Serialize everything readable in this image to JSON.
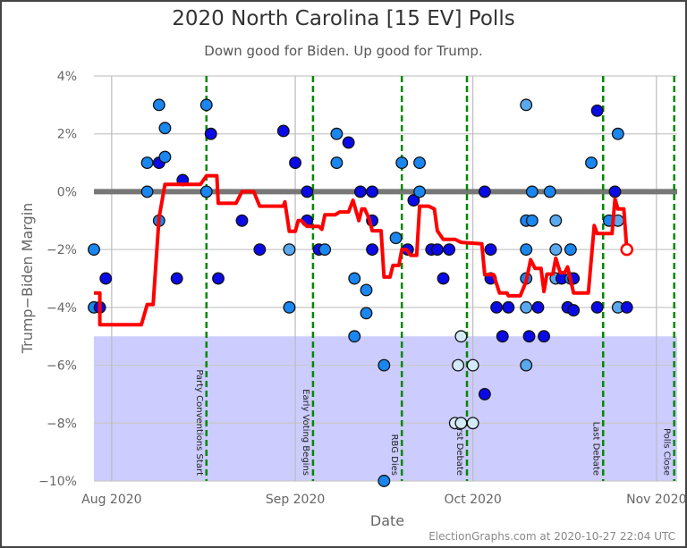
{
  "chart_data": {
    "type": "scatter",
    "title": "2020 North Carolina [15 EV] Polls",
    "subtitle": "Down good for Biden. Up good for Trump.",
    "xlabel": "Date",
    "ylabel": "Trump−Biden Margin",
    "footer": "ElectionGraphs.com at 2020-10-27 22:04 UTC",
    "xlim": [
      "2020-07-29",
      "2020-11-04T12:00"
    ],
    "ylim": [
      -10,
      4
    ],
    "x_ticks": [
      {
        "date": "2020-08-01",
        "label": "Aug 2020"
      },
      {
        "date": "2020-09-01",
        "label": "Sep 2020"
      },
      {
        "date": "2020-10-01",
        "label": "Oct 2020"
      },
      {
        "date": "2020-11-01",
        "label": "Nov 2020"
      }
    ],
    "y_ticks": [
      {
        "value": 4,
        "label": "4%"
      },
      {
        "value": 2,
        "label": "2%"
      },
      {
        "value": 0,
        "label": "0%"
      },
      {
        "value": -2,
        "label": "−2%"
      },
      {
        "value": -4,
        "label": "−4%"
      },
      {
        "value": -6,
        "label": "−6%"
      },
      {
        "value": -8,
        "label": "−8%"
      },
      {
        "value": -10,
        "label": "−10%"
      }
    ],
    "grid": true,
    "shaded_band": {
      "from": -10,
      "to": -5,
      "color": "#ccccff"
    },
    "zero_line_color": "#777777",
    "events": [
      {
        "date": "2020-08-17",
        "label": "Party Conventions Start"
      },
      {
        "date": "2020-09-04",
        "label": "Early Voting Begins"
      },
      {
        "date": "2020-09-19",
        "label": "RBG Dies"
      },
      {
        "date": "2020-09-30",
        "label": "First Debate"
      },
      {
        "date": "2020-10-23",
        "label": "Last Debate"
      },
      {
        "date": "2020-11-04",
        "label": "Polls Close"
      }
    ],
    "colors": {
      "dark": "#0a0ae6",
      "mid": "#1a86f0",
      "light": "#5aa8f0",
      "pale": "#d4eaf8",
      "average": "#ff0000",
      "event": "#008800"
    },
    "polls": [
      {
        "date": "2020-07-29",
        "value": -2,
        "shade": "mid"
      },
      {
        "date": "2020-07-29",
        "value": -4,
        "shade": "mid"
      },
      {
        "date": "2020-07-30",
        "value": -4,
        "shade": "dark"
      },
      {
        "date": "2020-07-31",
        "value": -3,
        "shade": "dark"
      },
      {
        "date": "2020-08-07",
        "value": 1,
        "shade": "mid"
      },
      {
        "date": "2020-08-07",
        "value": 0,
        "shade": "mid"
      },
      {
        "date": "2020-08-09",
        "value": 3,
        "shade": "mid"
      },
      {
        "date": "2020-08-09",
        "value": 1,
        "shade": "dark"
      },
      {
        "date": "2020-08-09",
        "value": -1,
        "shade": "mid"
      },
      {
        "date": "2020-08-10",
        "value": 2.2,
        "shade": "mid"
      },
      {
        "date": "2020-08-10",
        "value": 1.2,
        "shade": "mid"
      },
      {
        "date": "2020-08-12",
        "value": -3,
        "shade": "dark"
      },
      {
        "date": "2020-08-13",
        "value": 0.4,
        "shade": "dark"
      },
      {
        "date": "2020-08-17",
        "value": 3,
        "shade": "mid"
      },
      {
        "date": "2020-08-17",
        "value": 0,
        "shade": "mid"
      },
      {
        "date": "2020-08-17T18:00",
        "value": 2,
        "shade": "dark"
      },
      {
        "date": "2020-08-19",
        "value": -3,
        "shade": "dark"
      },
      {
        "date": "2020-08-23",
        "value": -1,
        "shade": "dark"
      },
      {
        "date": "2020-08-26",
        "value": -2,
        "shade": "dark"
      },
      {
        "date": "2020-08-30",
        "value": 2.1,
        "shade": "dark"
      },
      {
        "date": "2020-08-31",
        "value": -2,
        "shade": "light"
      },
      {
        "date": "2020-08-31",
        "value": -4,
        "shade": "mid"
      },
      {
        "date": "2020-09-01",
        "value": 1,
        "shade": "dark"
      },
      {
        "date": "2020-09-03",
        "value": 0,
        "shade": "dark"
      },
      {
        "date": "2020-09-03",
        "value": -1,
        "shade": "dark"
      },
      {
        "date": "2020-09-05",
        "value": -2,
        "shade": "dark"
      },
      {
        "date": "2020-09-06",
        "value": -2,
        "shade": "mid"
      },
      {
        "date": "2020-09-08",
        "value": 2,
        "shade": "mid"
      },
      {
        "date": "2020-09-08",
        "value": 1,
        "shade": "mid"
      },
      {
        "date": "2020-09-10",
        "value": 1.7,
        "shade": "dark"
      },
      {
        "date": "2020-09-11",
        "value": -3,
        "shade": "mid"
      },
      {
        "date": "2020-09-11",
        "value": -5,
        "shade": "mid"
      },
      {
        "date": "2020-09-12",
        "value": 0,
        "shade": "dark"
      },
      {
        "date": "2020-09-13",
        "value": -3.4,
        "shade": "mid"
      },
      {
        "date": "2020-09-13",
        "value": -4.2,
        "shade": "mid"
      },
      {
        "date": "2020-09-14",
        "value": 0,
        "shade": "dark"
      },
      {
        "date": "2020-09-14",
        "value": -1,
        "shade": "dark"
      },
      {
        "date": "2020-09-14",
        "value": -2,
        "shade": "dark"
      },
      {
        "date": "2020-09-16",
        "value": -6,
        "shade": "mid"
      },
      {
        "date": "2020-09-16",
        "value": -10,
        "shade": "mid"
      },
      {
        "date": "2020-09-18",
        "value": -1.6,
        "shade": "mid"
      },
      {
        "date": "2020-09-19",
        "value": 1,
        "shade": "mid"
      },
      {
        "date": "2020-09-20",
        "value": -2,
        "shade": "dark"
      },
      {
        "date": "2020-09-21",
        "value": -0.3,
        "shade": "dark"
      },
      {
        "date": "2020-09-22",
        "value": 1,
        "shade": "mid"
      },
      {
        "date": "2020-09-22",
        "value": 0,
        "shade": "mid"
      },
      {
        "date": "2020-09-24",
        "value": -2,
        "shade": "dark"
      },
      {
        "date": "2020-09-25",
        "value": -2,
        "shade": "dark"
      },
      {
        "date": "2020-09-26",
        "value": -3,
        "shade": "dark"
      },
      {
        "date": "2020-09-27",
        "value": -2,
        "shade": "dark"
      },
      {
        "date": "2020-09-28",
        "value": -8,
        "shade": "pale"
      },
      {
        "date": "2020-09-28T12:00",
        "value": -6,
        "shade": "pale"
      },
      {
        "date": "2020-09-29",
        "value": -5,
        "shade": "pale"
      },
      {
        "date": "2020-09-29",
        "value": -8,
        "shade": "pale"
      },
      {
        "date": "2020-10-01",
        "value": -6,
        "shade": "pale"
      },
      {
        "date": "2020-10-01",
        "value": -8,
        "shade": "pale"
      },
      {
        "date": "2020-10-03",
        "value": 0,
        "shade": "dark"
      },
      {
        "date": "2020-10-03",
        "value": -7,
        "shade": "dark"
      },
      {
        "date": "2020-10-04",
        "value": -2,
        "shade": "dark"
      },
      {
        "date": "2020-10-04",
        "value": -3,
        "shade": "dark"
      },
      {
        "date": "2020-10-05",
        "value": -4,
        "shade": "dark"
      },
      {
        "date": "2020-10-06",
        "value": -5,
        "shade": "dark"
      },
      {
        "date": "2020-10-07",
        "value": -4,
        "shade": "dark"
      },
      {
        "date": "2020-10-10",
        "value": 3,
        "shade": "light"
      },
      {
        "date": "2020-10-10",
        "value": -1,
        "shade": "mid"
      },
      {
        "date": "2020-10-10",
        "value": -2,
        "shade": "mid"
      },
      {
        "date": "2020-10-10",
        "value": -3,
        "shade": "mid"
      },
      {
        "date": "2020-10-10",
        "value": -4,
        "shade": "light"
      },
      {
        "date": "2020-10-10",
        "value": -6,
        "shade": "light"
      },
      {
        "date": "2020-10-10T12:00",
        "value": -5,
        "shade": "dark"
      },
      {
        "date": "2020-10-11",
        "value": 0,
        "shade": "mid"
      },
      {
        "date": "2020-10-11",
        "value": -1,
        "shade": "mid"
      },
      {
        "date": "2020-10-12",
        "value": -4,
        "shade": "dark"
      },
      {
        "date": "2020-10-13",
        "value": -5,
        "shade": "dark"
      },
      {
        "date": "2020-10-14",
        "value": 0,
        "shade": "mid"
      },
      {
        "date": "2020-10-15",
        "value": -1,
        "shade": "light"
      },
      {
        "date": "2020-10-15",
        "value": -2,
        "shade": "light"
      },
      {
        "date": "2020-10-15",
        "value": -3,
        "shade": "light"
      },
      {
        "date": "2020-10-16",
        "value": -3,
        "shade": "dark"
      },
      {
        "date": "2020-10-17",
        "value": -4,
        "shade": "dark"
      },
      {
        "date": "2020-10-17T12:00",
        "value": -2,
        "shade": "mid"
      },
      {
        "date": "2020-10-17T12:00",
        "value": -3,
        "shade": "mid"
      },
      {
        "date": "2020-10-18",
        "value": -3,
        "shade": "dark"
      },
      {
        "date": "2020-10-18",
        "value": -4.1,
        "shade": "dark"
      },
      {
        "date": "2020-10-21",
        "value": 1,
        "shade": "mid"
      },
      {
        "date": "2020-10-22",
        "value": 2.8,
        "shade": "dark"
      },
      {
        "date": "2020-10-22",
        "value": -4,
        "shade": "dark"
      },
      {
        "date": "2020-10-24",
        "value": -1,
        "shade": "mid"
      },
      {
        "date": "2020-10-25",
        "value": 0,
        "shade": "dark"
      },
      {
        "date": "2020-10-25T12:00",
        "value": 2,
        "shade": "mid"
      },
      {
        "date": "2020-10-25T12:00",
        "value": -1,
        "shade": "light"
      },
      {
        "date": "2020-10-25T12:00",
        "value": -4,
        "shade": "light"
      },
      {
        "date": "2020-10-27",
        "value": -4,
        "shade": "dark"
      }
    ],
    "average": [
      {
        "date": "2020-07-29",
        "value": -3.5
      },
      {
        "date": "2020-07-30",
        "value": -3.5
      },
      {
        "date": "2020-07-30",
        "value": -4.6
      },
      {
        "date": "2020-08-06",
        "value": -4.6
      },
      {
        "date": "2020-08-07",
        "value": -3.9
      },
      {
        "date": "2020-08-08",
        "value": -3.9
      },
      {
        "date": "2020-08-09",
        "value": -0.9
      },
      {
        "date": "2020-08-10",
        "value": 0.25
      },
      {
        "date": "2020-08-16",
        "value": 0.25
      },
      {
        "date": "2020-08-17",
        "value": 0.55
      },
      {
        "date": "2020-08-18T18:00",
        "value": 0.55
      },
      {
        "date": "2020-08-19",
        "value": -0.4
      },
      {
        "date": "2020-08-22",
        "value": -0.4
      },
      {
        "date": "2020-08-23",
        "value": 0
      },
      {
        "date": "2020-08-25",
        "value": 0
      },
      {
        "date": "2020-08-26",
        "value": -0.5
      },
      {
        "date": "2020-08-30",
        "value": -0.5
      },
      {
        "date": "2020-08-30T06:00",
        "value": -0.35
      },
      {
        "date": "2020-08-31",
        "value": -1.37
      },
      {
        "date": "2020-09-01",
        "value": -1.37
      },
      {
        "date": "2020-09-01T12:00",
        "value": -1.0
      },
      {
        "date": "2020-09-02",
        "value": -1.0
      },
      {
        "date": "2020-09-03",
        "value": -1.2
      },
      {
        "date": "2020-09-05",
        "value": -1.2
      },
      {
        "date": "2020-09-05T12:00",
        "value": -1.3
      },
      {
        "date": "2020-09-06",
        "value": -0.8
      },
      {
        "date": "2020-09-07T18:00",
        "value": -0.8
      },
      {
        "date": "2020-09-08T12:00",
        "value": -0.7
      },
      {
        "date": "2020-09-10",
        "value": -0.7
      },
      {
        "date": "2020-09-10T18:00",
        "value": -0.3
      },
      {
        "date": "2020-09-11T18:00",
        "value": -1.0
      },
      {
        "date": "2020-09-12T06:00",
        "value": -0.6
      },
      {
        "date": "2020-09-12T18:00",
        "value": -0.6
      },
      {
        "date": "2020-09-13T12:00",
        "value": -0.95
      },
      {
        "date": "2020-09-14",
        "value": -1.35
      },
      {
        "date": "2020-09-15T12:00",
        "value": -1.35
      },
      {
        "date": "2020-09-16",
        "value": -2.95
      },
      {
        "date": "2020-09-17",
        "value": -2.95
      },
      {
        "date": "2020-09-17T12:00",
        "value": -2.55
      },
      {
        "date": "2020-09-18T12:00",
        "value": -2.55
      },
      {
        "date": "2020-09-19",
        "value": -2.0
      },
      {
        "date": "2020-09-19T18:00",
        "value": -2.0
      },
      {
        "date": "2020-09-20T12:00",
        "value": -2.2
      },
      {
        "date": "2020-09-21T12:00",
        "value": -2.2
      },
      {
        "date": "2020-09-22",
        "value": -0.5
      },
      {
        "date": "2020-09-23T12:00",
        "value": -0.5
      },
      {
        "date": "2020-09-24T12:00",
        "value": -0.6
      },
      {
        "date": "2020-09-25",
        "value": -1.35
      },
      {
        "date": "2020-09-26",
        "value": -1.65
      },
      {
        "date": "2020-09-28",
        "value": -1.65
      },
      {
        "date": "2020-09-29",
        "value": -1.75
      },
      {
        "date": "2020-10-02T12:00",
        "value": -1.8
      },
      {
        "date": "2020-10-03",
        "value": -2.87
      },
      {
        "date": "2020-10-04T12:00",
        "value": -2.87
      },
      {
        "date": "2020-10-05T12:00",
        "value": -3.5
      },
      {
        "date": "2020-10-06T18:00",
        "value": -3.5
      },
      {
        "date": "2020-10-07",
        "value": -3.6
      },
      {
        "date": "2020-10-09",
        "value": -3.6
      },
      {
        "date": "2020-10-10",
        "value": -3.1
      },
      {
        "date": "2020-10-10T18:00",
        "value": -2.35
      },
      {
        "date": "2020-10-11T12:00",
        "value": -2.65
      },
      {
        "date": "2020-10-12T12:00",
        "value": -2.65
      },
      {
        "date": "2020-10-13",
        "value": -3.45
      },
      {
        "date": "2020-10-13T12:00",
        "value": -2.85
      },
      {
        "date": "2020-10-14T12:00",
        "value": -2.85
      },
      {
        "date": "2020-10-15",
        "value": -2.3
      },
      {
        "date": "2020-10-15T18:00",
        "value": -2.8
      },
      {
        "date": "2020-10-16T12:00",
        "value": -2.8
      },
      {
        "date": "2020-10-17",
        "value": -2.6
      },
      {
        "date": "2020-10-18",
        "value": -3.5
      },
      {
        "date": "2020-10-20T12:00",
        "value": -3.5
      },
      {
        "date": "2020-10-21T12:00",
        "value": -1.17
      },
      {
        "date": "2020-10-22",
        "value": -1.45
      },
      {
        "date": "2020-10-24T12:00",
        "value": -1.45
      },
      {
        "date": "2020-10-25",
        "value": -0.25
      },
      {
        "date": "2020-10-25T12:00",
        "value": -0.6
      },
      {
        "date": "2020-10-26T12:00",
        "value": -0.6
      },
      {
        "date": "2020-10-27",
        "value": -2.0
      }
    ]
  }
}
